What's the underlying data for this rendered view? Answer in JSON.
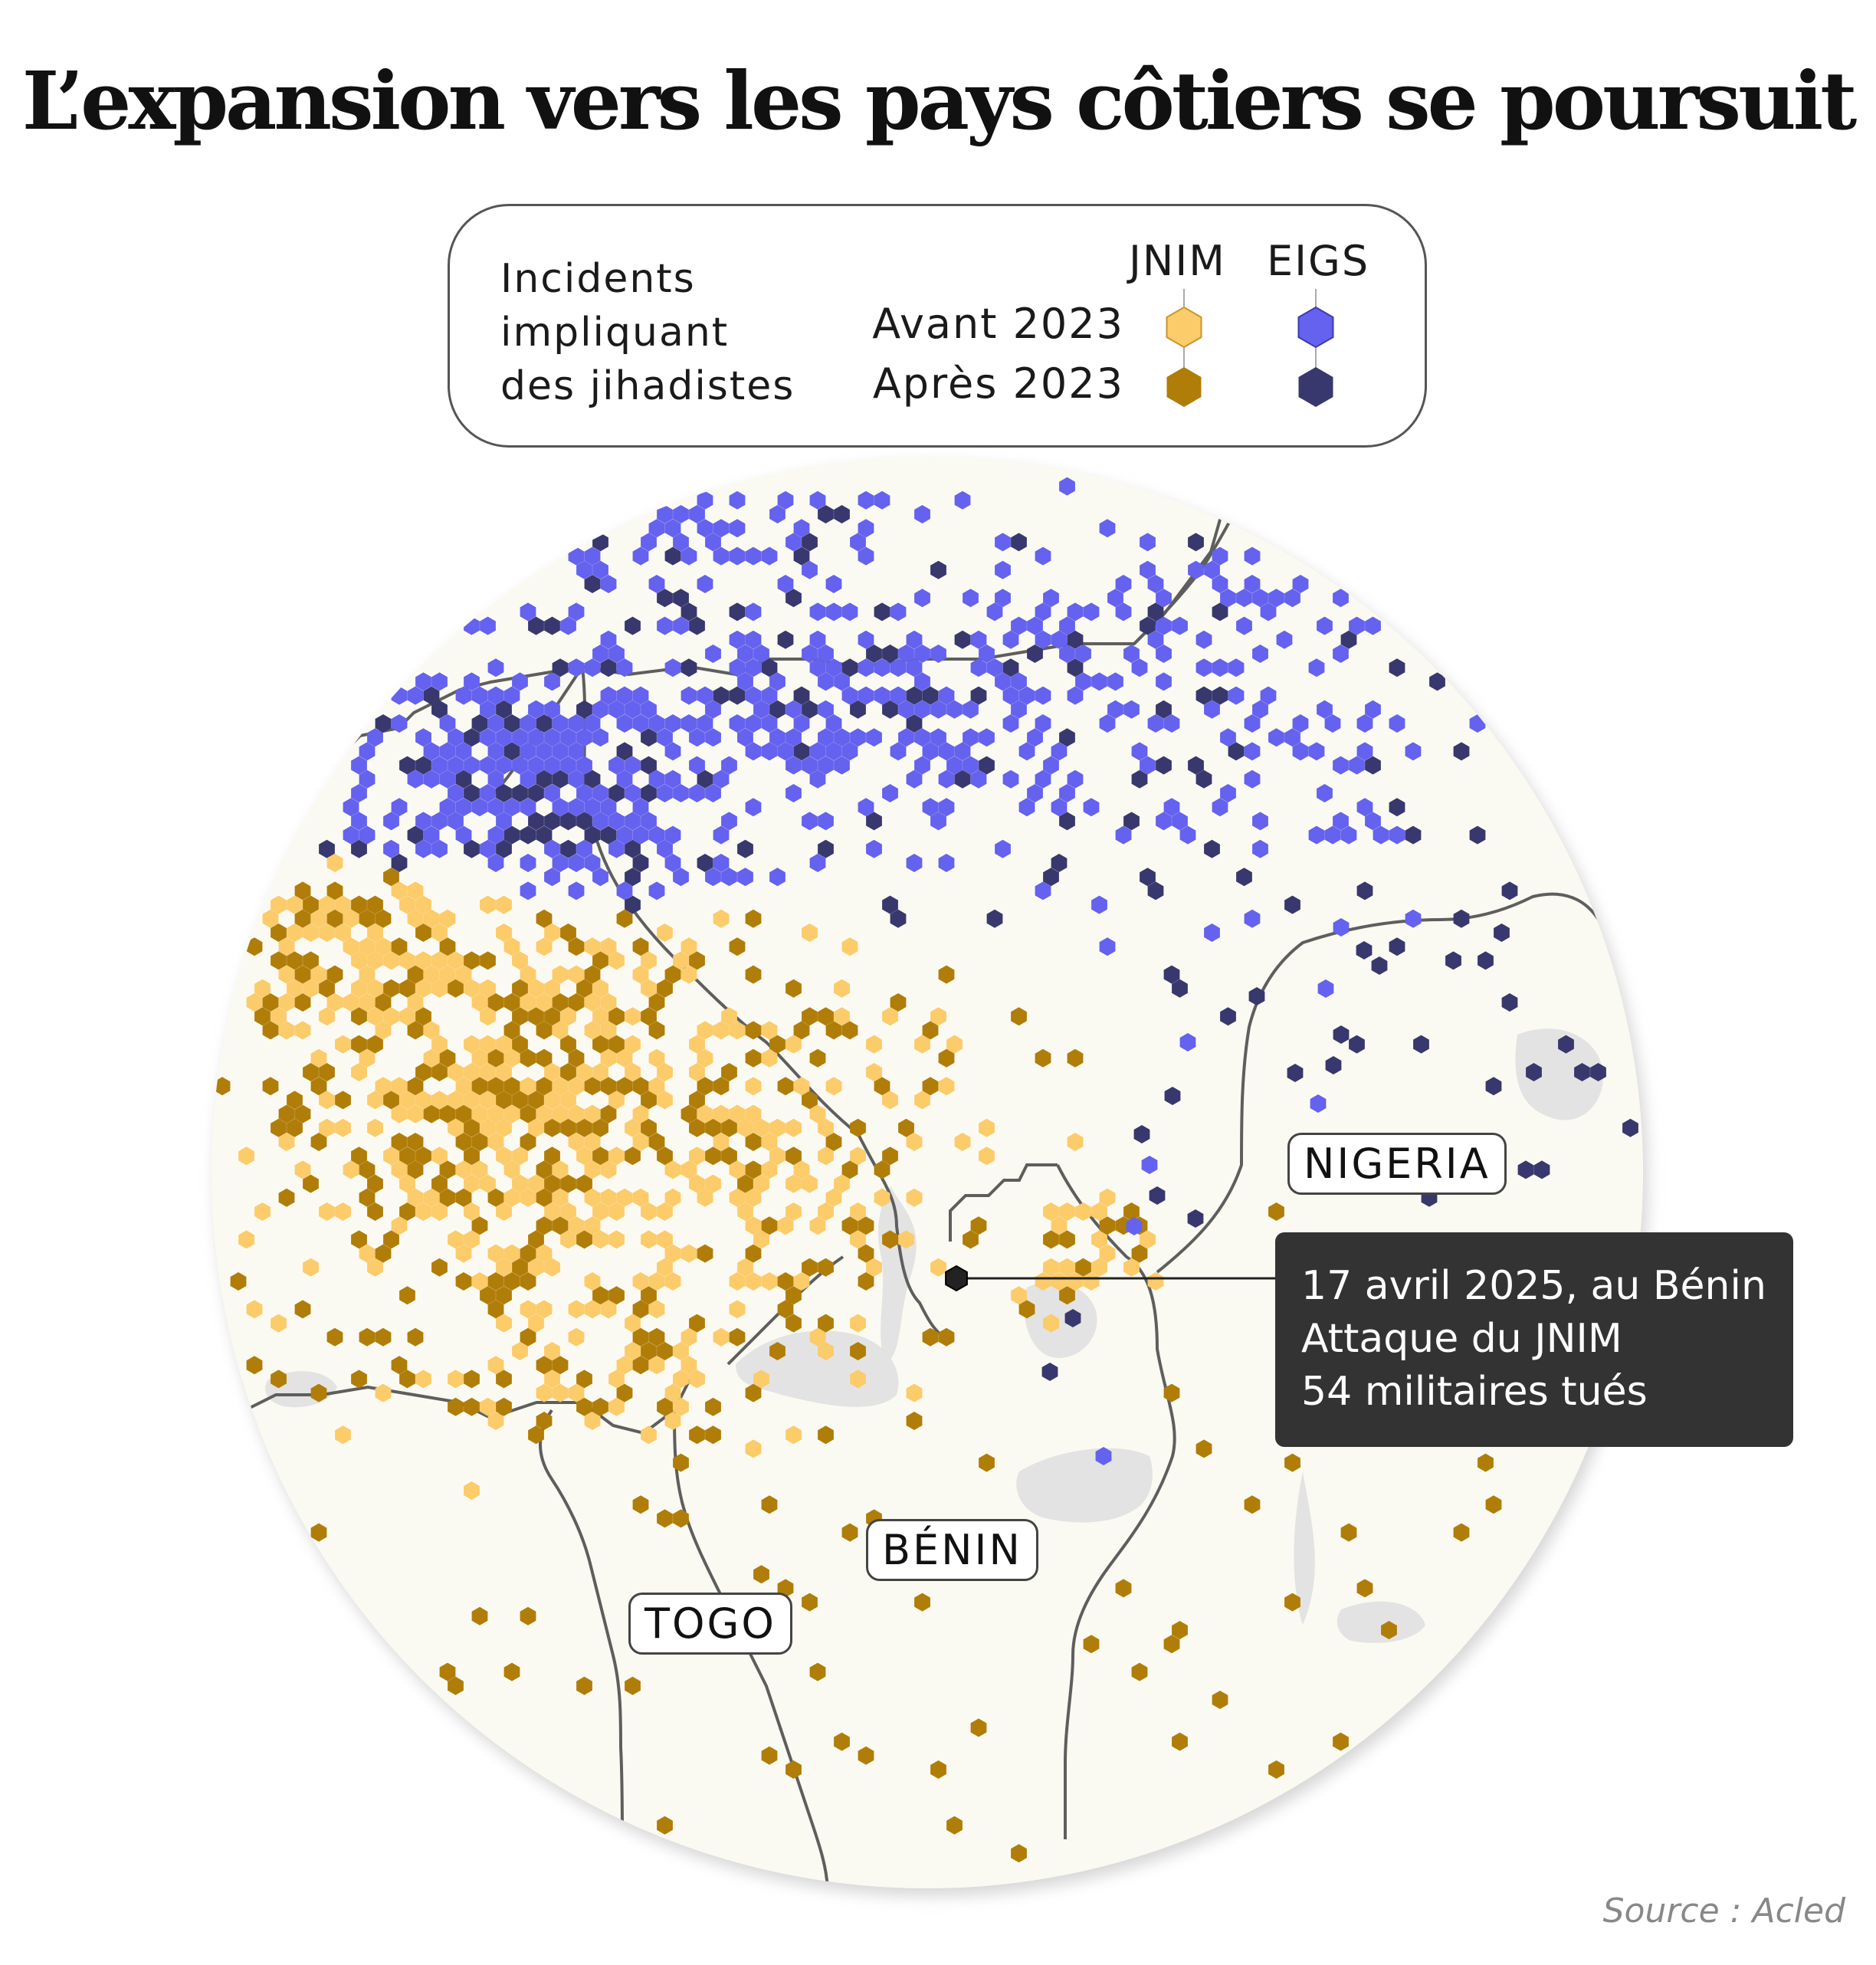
{
  "title": "L’expansion vers les pays côtiers se poursuit",
  "legend": {
    "heading": "Incidents\nimpliquant\ndes jihadistes",
    "col_jnim": "JNIM",
    "col_eigs": "EIGS",
    "row_before": "Avant 2023",
    "row_after": "Après 2023"
  },
  "colors": {
    "jnim_before": "#fccb6a",
    "jnim_after": "#b07d08",
    "eigs_before": "#6462ee",
    "eigs_after": "#38386e",
    "land": "#fbfaf2",
    "lakes": "#e4e4e4",
    "border": "#5a5a5a"
  },
  "countries": {
    "nigeria": "NIGERIA",
    "benin": "BÉNIN",
    "togo": "TOGO"
  },
  "callout": {
    "line1": "17 avril 2025, au Bénin",
    "line2": "Attaque du JNIM",
    "line3": "54 militaires tués"
  },
  "source": "Source : Acled"
}
